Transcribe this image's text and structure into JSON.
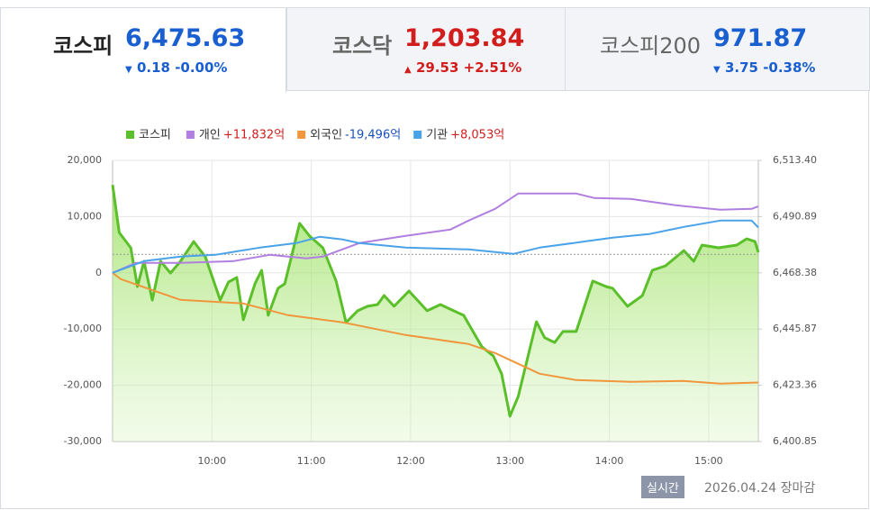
{
  "tabs": [
    {
      "name": "코스피",
      "value": "6,475.63",
      "change": "0.18",
      "change_pct": "-0.00%",
      "direction": "down"
    },
    {
      "name": "코스닥",
      "value": "1,203.84",
      "change": "29.53",
      "change_pct": "+2.51%",
      "direction": "up"
    },
    {
      "name": "코스피200",
      "value": "971.87",
      "change": "3.75",
      "change_pct": "-0.38%",
      "direction": "down"
    }
  ],
  "chart_data": {
    "type": "line",
    "grid": true,
    "xlim": [
      "09:00",
      "15:30"
    ],
    "xticks": [
      "10:00",
      "11:00",
      "12:00",
      "13:00",
      "14:00",
      "15:00"
    ],
    "ylim": [
      -30000,
      20000
    ],
    "yticks": [
      {
        "value": -30000,
        "label": "-30,000"
      },
      {
        "value": -20000,
        "label": "-20,000"
      },
      {
        "value": -10000,
        "label": "-10,000"
      },
      0,
      {
        "value": 10000,
        "label": "10,000"
      },
      {
        "value": 20000,
        "label": "20,000"
      }
    ],
    "y2lim": [
      6400.85,
      6513.4
    ],
    "y2ticks": [
      {
        "value": 6400.85,
        "label": "6,400.85"
      },
      {
        "value": 6423.36,
        "label": "6,423.36"
      },
      {
        "value": 6445.87,
        "label": "6,445.87"
      },
      {
        "value": 6468.38,
        "label": "6,468.38"
      },
      {
        "value": 6490.89,
        "label": "6,490.89"
      },
      {
        "value": 6513.4,
        "label": "6,513.40"
      }
    ],
    "reference_line": 6475.81,
    "series": [
      {
        "name": "코스피",
        "color": "#5bbf2a",
        "axis": "y2",
        "area": true,
        "x": [
          "09:00",
          "09:04",
          "09:11",
          "09:15",
          "09:19",
          "09:24",
          "09:29",
          "09:35",
          "09:41",
          "09:49",
          "09:56",
          "10:05",
          "10:10",
          "10:15",
          "10:19",
          "10:26",
          "10:30",
          "10:34",
          "10:40",
          "10:44",
          "10:53",
          "10:59",
          "11:07",
          "11:15",
          "11:21",
          "11:28",
          "11:34",
          "11:40",
          "11:44",
          "11:50",
          "11:59",
          "12:10",
          "12:18",
          "12:26",
          "12:32",
          "12:43",
          "12:50",
          "12:55",
          "13:00",
          "13:05",
          "13:16",
          "13:21",
          "13:27",
          "13:32",
          "13:40",
          "13:50",
          "13:58",
          "14:02",
          "14:11",
          "14:20",
          "14:26",
          "14:34",
          "14:45",
          "14:51",
          "14:56",
          "15:06",
          "15:17",
          "15:23",
          "15:28",
          "15:30"
        ],
        "values": [
          6503.6,
          6484.5,
          6478.4,
          6462.9,
          6473.0,
          6457.5,
          6473.0,
          6468.3,
          6473.0,
          6480.9,
          6474.8,
          6457.5,
          6464.7,
          6466.5,
          6449.6,
          6464.0,
          6469.4,
          6451.4,
          6462.2,
          6464.0,
          6488.2,
          6483.1,
          6478.4,
          6465.1,
          6448.5,
          6453.2,
          6455.0,
          6455.7,
          6459.3,
          6455.0,
          6461.1,
          6453.2,
          6455.7,
          6453.2,
          6451.4,
          6438.8,
          6435.1,
          6427.9,
          6411.0,
          6418.9,
          6448.8,
          6442.4,
          6440.5,
          6444.9,
          6444.9,
          6465.1,
          6462.9,
          6462.2,
          6455.0,
          6459.3,
          6469.4,
          6471.2,
          6477.3,
          6473.0,
          6479.5,
          6478.4,
          6479.5,
          6482.0,
          6480.9,
          6476.6
        ]
      },
      {
        "name": "개인",
        "color": "#b07fe0",
        "total": 11832,
        "total_label": "+11,832억",
        "x": [
          "09:00",
          "09:14",
          "09:41",
          "10:13",
          "10:35",
          "10:57",
          "11:07",
          "11:29",
          "11:57",
          "12:24",
          "12:35",
          "12:51",
          "13:05",
          "13:40",
          "13:51",
          "14:13",
          "14:40",
          "15:07",
          "15:26",
          "15:30"
        ],
        "values": [
          0,
          1760,
          1760,
          2080,
          3200,
          2560,
          2880,
          5290,
          6570,
          7690,
          9290,
          11380,
          14100,
          14100,
          13300,
          13140,
          12020,
          11220,
          11380,
          11832
        ]
      },
      {
        "name": "외국인",
        "color": "#f0963c",
        "total": -19496,
        "total_label": "-19,496억",
        "x": [
          "09:00",
          "09:05",
          "09:41",
          "10:19",
          "10:46",
          "11:19",
          "11:57",
          "12:35",
          "12:51",
          "13:18",
          "13:40",
          "14:13",
          "14:45",
          "15:07",
          "15:30"
        ],
        "values": [
          0,
          -1120,
          -4810,
          -5450,
          -7530,
          -8810,
          -11060,
          -12660,
          -14260,
          -17950,
          -19070,
          -19390,
          -19230,
          -19710,
          -19496
        ]
      },
      {
        "name": "기관",
        "color": "#4aa3e8",
        "total": 8053,
        "total_label": "+8,053억",
        "x": [
          "09:00",
          "09:19",
          "09:41",
          "10:02",
          "10:29",
          "10:51",
          "11:05",
          "11:19",
          "11:29",
          "11:57",
          "12:35",
          "13:02",
          "13:18",
          "13:46",
          "14:02",
          "14:24",
          "14:45",
          "15:07",
          "15:26",
          "15:30"
        ],
        "values": [
          0,
          2080,
          2880,
          3200,
          4490,
          5290,
          6410,
          5930,
          5290,
          4490,
          4170,
          3370,
          4490,
          5610,
          6250,
          6890,
          8170,
          9290,
          9290,
          8053
        ]
      }
    ]
  },
  "footer": {
    "badge": "실시간",
    "status": "2026.04.24 장마감"
  }
}
